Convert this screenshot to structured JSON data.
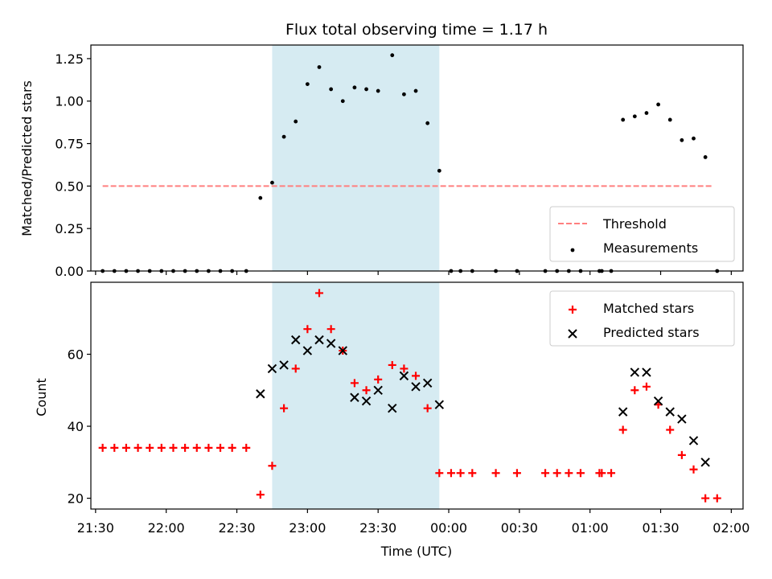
{
  "chart_data": [
    {
      "type": "scatter",
      "title": "Flux total observing time = 1.17 h",
      "xlabel": "",
      "ylabel": "Matched/Predicted stars",
      "ylim": [
        0,
        1.33
      ],
      "yticks": [
        "0.00",
        "0.25",
        "0.50",
        "0.75",
        "1.00",
        "1.25"
      ],
      "shaded_region": {
        "start": "22:45",
        "end": "23:56",
        "color": "#add8e6"
      },
      "series": [
        {
          "name": "Threshold",
          "kind": "dashed-line",
          "color": "#ff7f7f",
          "points": [
            [
              "21:33",
              0.5
            ],
            [
              "23:56",
              0.5
            ],
            [
              "01:52",
              0.5
            ]
          ],
          "x_range": [
            "21:33",
            "01:52"
          ],
          "value": 0.5
        },
        {
          "name": "Measurements",
          "kind": "dot",
          "color": "#000000",
          "points": [
            [
              "21:33",
              0
            ],
            [
              "21:38",
              0
            ],
            [
              "21:43",
              0
            ],
            [
              "21:48",
              0
            ],
            [
              "21:53",
              0
            ],
            [
              "21:58",
              0
            ],
            [
              "22:03",
              0
            ],
            [
              "22:08",
              0
            ],
            [
              "22:13",
              0
            ],
            [
              "22:18",
              0
            ],
            [
              "22:23",
              0
            ],
            [
              "22:28",
              0
            ],
            [
              "22:34",
              0
            ],
            [
              "22:40",
              0.43
            ],
            [
              "22:45",
              0.52
            ],
            [
              "22:50",
              0.79
            ],
            [
              "22:55",
              0.88
            ],
            [
              "23:00",
              1.1
            ],
            [
              "23:05",
              1.2
            ],
            [
              "23:10",
              1.07
            ],
            [
              "23:15",
              1.0
            ],
            [
              "23:20",
              1.08
            ],
            [
              "23:25",
              1.07
            ],
            [
              "23:30",
              1.06
            ],
            [
              "23:36",
              1.27
            ],
            [
              "23:41",
              1.04
            ],
            [
              "23:46",
              1.06
            ],
            [
              "23:51",
              0.87
            ],
            [
              "23:56",
              0.59
            ],
            [
              "00:01",
              0
            ],
            [
              "00:05",
              0
            ],
            [
              "00:10",
              0
            ],
            [
              "00:20",
              0
            ],
            [
              "00:29",
              0
            ],
            [
              "00:41",
              0
            ],
            [
              "00:46",
              0
            ],
            [
              "00:51",
              0
            ],
            [
              "00:56",
              0
            ],
            [
              "01:04",
              0
            ],
            [
              "01:05",
              0
            ],
            [
              "01:09",
              0
            ],
            [
              "01:14",
              0.89
            ],
            [
              "01:19",
              0.91
            ],
            [
              "01:24",
              0.93
            ],
            [
              "01:29",
              0.98
            ],
            [
              "01:34",
              0.89
            ],
            [
              "01:39",
              0.77
            ],
            [
              "01:44",
              0.78
            ],
            [
              "01:49",
              0.67
            ],
            [
              "01:54",
              0
            ]
          ]
        }
      ],
      "legend": {
        "position": "lower right",
        "entries": [
          "Threshold",
          "Measurements"
        ]
      }
    },
    {
      "type": "scatter",
      "title": "",
      "xlabel": "Time (UTC)",
      "ylabel": "Count",
      "ylim": [
        17,
        80
      ],
      "yticks": [
        "20",
        "40",
        "60"
      ],
      "xlim": [
        "21:28",
        "02:05"
      ],
      "xticks": [
        "21:30",
        "22:00",
        "22:30",
        "23:00",
        "23:30",
        "00:00",
        "00:30",
        "01:00",
        "01:30",
        "02:00"
      ],
      "shaded_region": {
        "start": "22:45",
        "end": "23:56",
        "color": "#add8e6"
      },
      "series": [
        {
          "name": "Matched stars",
          "kind": "plus",
          "color": "#ff0000",
          "points": [
            [
              "21:33",
              34
            ],
            [
              "21:38",
              34
            ],
            [
              "21:43",
              34
            ],
            [
              "21:48",
              34
            ],
            [
              "21:53",
              34
            ],
            [
              "21:58",
              34
            ],
            [
              "22:03",
              34
            ],
            [
              "22:08",
              34
            ],
            [
              "22:13",
              34
            ],
            [
              "22:18",
              34
            ],
            [
              "22:23",
              34
            ],
            [
              "22:28",
              34
            ],
            [
              "22:34",
              34
            ],
            [
              "22:40",
              21
            ],
            [
              "22:45",
              29
            ],
            [
              "22:50",
              45
            ],
            [
              "22:55",
              56
            ],
            [
              "23:00",
              67
            ],
            [
              "23:05",
              77
            ],
            [
              "23:10",
              67
            ],
            [
              "23:15",
              61
            ],
            [
              "23:20",
              52
            ],
            [
              "23:25",
              50
            ],
            [
              "23:30",
              53
            ],
            [
              "23:36",
              57
            ],
            [
              "23:41",
              56
            ],
            [
              "23:46",
              54
            ],
            [
              "23:51",
              45
            ],
            [
              "23:56",
              27
            ],
            [
              "00:01",
              27
            ],
            [
              "00:05",
              27
            ],
            [
              "00:10",
              27
            ],
            [
              "00:20",
              27
            ],
            [
              "00:29",
              27
            ],
            [
              "00:41",
              27
            ],
            [
              "00:46",
              27
            ],
            [
              "00:51",
              27
            ],
            [
              "00:56",
              27
            ],
            [
              "01:04",
              27
            ],
            [
              "01:05",
              27
            ],
            [
              "01:09",
              27
            ],
            [
              "01:14",
              39
            ],
            [
              "01:19",
              50
            ],
            [
              "01:24",
              51
            ],
            [
              "01:29",
              46
            ],
            [
              "01:34",
              39
            ],
            [
              "01:39",
              32
            ],
            [
              "01:44",
              28
            ],
            [
              "01:49",
              20
            ],
            [
              "01:54",
              20
            ]
          ]
        },
        {
          "name": "Predicted stars",
          "kind": "x",
          "color": "#000000",
          "points": [
            [
              "22:40",
              49
            ],
            [
              "22:45",
              56
            ],
            [
              "22:50",
              57
            ],
            [
              "22:55",
              64
            ],
            [
              "23:00",
              61
            ],
            [
              "23:05",
              64
            ],
            [
              "23:10",
              63
            ],
            [
              "23:15",
              61
            ],
            [
              "23:20",
              48
            ],
            [
              "23:25",
              47
            ],
            [
              "23:30",
              50
            ],
            [
              "23:36",
              45
            ],
            [
              "23:41",
              54
            ],
            [
              "23:46",
              51
            ],
            [
              "23:51",
              52
            ],
            [
              "23:56",
              46
            ],
            [
              "01:14",
              44
            ],
            [
              "01:19",
              55
            ],
            [
              "01:24",
              55
            ],
            [
              "01:29",
              47
            ],
            [
              "01:34",
              44
            ],
            [
              "01:39",
              42
            ],
            [
              "01:44",
              36
            ],
            [
              "01:49",
              30
            ]
          ]
        }
      ],
      "legend": {
        "position": "upper right",
        "entries": [
          "Matched stars",
          "Predicted stars"
        ]
      }
    }
  ]
}
